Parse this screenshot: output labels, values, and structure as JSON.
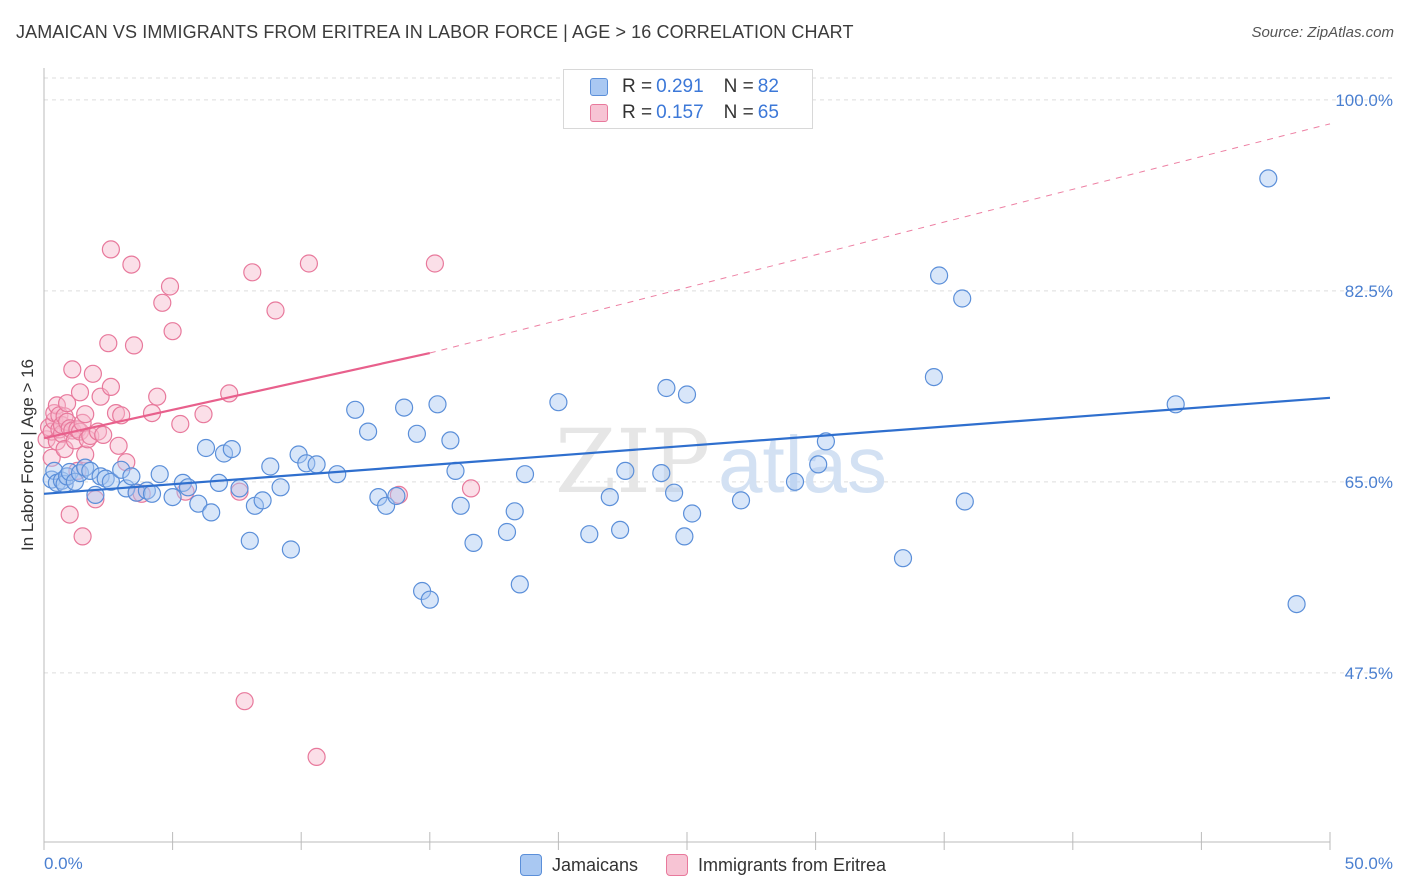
{
  "title": "JAMAICAN VS IMMIGRANTS FROM ERITREA IN LABOR FORCE | AGE > 16 CORRELATION CHART",
  "source": "Source: ZipAtlas.com",
  "watermark": {
    "zip": "ZIP",
    "atlas": "atlas"
  },
  "legend_top": [
    {
      "r_label": "R = ",
      "r_value": "0.291",
      "n_label": "N = ",
      "n_value": "82"
    },
    {
      "r_label": "R = ",
      "r_value": "0.157",
      "n_label": "N = ",
      "n_value": "65"
    }
  ],
  "colors": {
    "blue_fill": "#a9c8f2",
    "blue_stroke": "#5b8fd9",
    "blue_line": "#2f6fce",
    "pink_fill": "#f7b8cc",
    "pink_stroke": "#e8799c",
    "pink_line": "#e8608c",
    "tick_text": "#4a7fd0",
    "grid": "#dddddd"
  },
  "chart_data": {
    "type": "scatter",
    "title": "JAMAICAN VS IMMIGRANTS FROM ERITREA IN LABOR FORCE | AGE > 16 CORRELATION CHART",
    "xlabel": "",
    "ylabel": "In Labor Force | Age > 16",
    "xlim": [
      0,
      50
    ],
    "ylim": [
      32,
      102
    ],
    "x_tick_labels": [
      "0.0%",
      "50.0%"
    ],
    "y_ticks": [
      47.5,
      65.0,
      82.5,
      100.0
    ],
    "y_tick_labels": [
      "47.5%",
      "65.0%",
      "82.5%",
      "100.0%"
    ],
    "grid": true,
    "legend_placement": "bottom-center",
    "series": [
      {
        "name": "Jamaicans",
        "R": 0.291,
        "N": 82,
        "trend": {
          "x": [
            0,
            50
          ],
          "y": [
            63.9,
            72.7
          ],
          "style": "solid"
        },
        "points": [
          [
            0.3,
            65.2
          ],
          [
            0.4,
            66.0
          ],
          [
            0.5,
            64.9
          ],
          [
            0.7,
            65.1
          ],
          [
            0.8,
            64.8
          ],
          [
            0.9,
            65.5
          ],
          [
            1.0,
            65.9
          ],
          [
            1.2,
            65.0
          ],
          [
            1.4,
            65.8
          ],
          [
            1.6,
            66.3
          ],
          [
            1.8,
            66.0
          ],
          [
            2.0,
            63.8
          ],
          [
            2.2,
            65.5
          ],
          [
            2.4,
            65.3
          ],
          [
            2.6,
            65.0
          ],
          [
            3.0,
            66.1
          ],
          [
            3.2,
            64.4
          ],
          [
            3.4,
            65.5
          ],
          [
            3.6,
            64.0
          ],
          [
            4.0,
            64.2
          ],
          [
            4.2,
            63.9
          ],
          [
            4.5,
            65.7
          ],
          [
            5.0,
            63.6
          ],
          [
            5.4,
            64.9
          ],
          [
            5.6,
            64.5
          ],
          [
            6.0,
            63.0
          ],
          [
            6.3,
            68.1
          ],
          [
            6.5,
            62.2
          ],
          [
            6.8,
            64.9
          ],
          [
            7.0,
            67.6
          ],
          [
            7.3,
            68.0
          ],
          [
            7.6,
            64.4
          ],
          [
            8.0,
            59.6
          ],
          [
            8.2,
            62.8
          ],
          [
            8.5,
            63.3
          ],
          [
            8.8,
            66.4
          ],
          [
            9.2,
            64.5
          ],
          [
            9.6,
            58.8
          ],
          [
            9.9,
            67.5
          ],
          [
            10.2,
            66.7
          ],
          [
            10.6,
            66.6
          ],
          [
            11.4,
            65.7
          ],
          [
            12.1,
            71.6
          ],
          [
            12.6,
            69.6
          ],
          [
            13.0,
            63.6
          ],
          [
            13.3,
            62.8
          ],
          [
            13.7,
            63.7
          ],
          [
            14.0,
            71.8
          ],
          [
            14.5,
            69.4
          ],
          [
            14.7,
            55.0
          ],
          [
            15.0,
            54.2
          ],
          [
            15.3,
            72.1
          ],
          [
            15.8,
            68.8
          ],
          [
            16.0,
            66.0
          ],
          [
            16.2,
            62.8
          ],
          [
            16.7,
            59.4
          ],
          [
            18.0,
            60.4
          ],
          [
            18.3,
            62.3
          ],
          [
            18.5,
            55.6
          ],
          [
            18.7,
            65.7
          ],
          [
            20.0,
            72.3
          ],
          [
            21.2,
            60.2
          ],
          [
            22.0,
            63.6
          ],
          [
            22.4,
            60.6
          ],
          [
            22.6,
            66.0
          ],
          [
            24.0,
            65.8
          ],
          [
            24.2,
            73.6
          ],
          [
            24.5,
            64.0
          ],
          [
            24.9,
            60.0
          ],
          [
            25.0,
            73.0
          ],
          [
            25.2,
            62.1
          ],
          [
            27.1,
            63.3
          ],
          [
            29.2,
            65.0
          ],
          [
            30.1,
            66.6
          ],
          [
            30.4,
            68.7
          ],
          [
            33.4,
            58.0
          ],
          [
            34.6,
            74.6
          ],
          [
            34.8,
            83.9
          ],
          [
            35.7,
            81.8
          ],
          [
            35.8,
            63.2
          ],
          [
            44.0,
            72.1
          ],
          [
            47.6,
            92.8
          ],
          [
            48.7,
            53.8
          ]
        ]
      },
      {
        "name": "Immigrants from Eritrea",
        "R": 0.157,
        "N": 65,
        "trend": {
          "x": [
            0,
            15
          ],
          "y": [
            69.0,
            76.8
          ],
          "style": "solid",
          "extended": {
            "x": [
              15,
              50
            ],
            "y": [
              76.8,
              97.8
            ],
            "style": "dashed"
          }
        },
        "points": [
          [
            0.1,
            68.9
          ],
          [
            0.2,
            70.0
          ],
          [
            0.3,
            69.6
          ],
          [
            0.3,
            67.2
          ],
          [
            0.4,
            70.6
          ],
          [
            0.4,
            71.3
          ],
          [
            0.5,
            72.0
          ],
          [
            0.5,
            68.7
          ],
          [
            0.6,
            69.8
          ],
          [
            0.6,
            71.1
          ],
          [
            0.7,
            69.4
          ],
          [
            0.7,
            70.2
          ],
          [
            0.8,
            68.0
          ],
          [
            0.8,
            71.0
          ],
          [
            0.9,
            70.5
          ],
          [
            0.9,
            72.2
          ],
          [
            1.0,
            62.0
          ],
          [
            1.0,
            69.9
          ],
          [
            1.1,
            75.3
          ],
          [
            1.1,
            69.7
          ],
          [
            1.2,
            68.8
          ],
          [
            1.3,
            66.0
          ],
          [
            1.3,
            69.8
          ],
          [
            1.4,
            73.2
          ],
          [
            1.4,
            69.6
          ],
          [
            1.5,
            70.4
          ],
          [
            1.6,
            71.2
          ],
          [
            1.6,
            67.5
          ],
          [
            1.7,
            68.9
          ],
          [
            1.8,
            69.2
          ],
          [
            1.9,
            74.9
          ],
          [
            2.0,
            63.4
          ],
          [
            2.1,
            69.6
          ],
          [
            2.2,
            72.8
          ],
          [
            2.3,
            69.3
          ],
          [
            2.5,
            77.7
          ],
          [
            2.6,
            73.7
          ],
          [
            2.8,
            71.3
          ],
          [
            2.9,
            68.3
          ],
          [
            3.0,
            71.1
          ],
          [
            3.2,
            66.8
          ],
          [
            3.4,
            84.9
          ],
          [
            3.5,
            77.5
          ],
          [
            3.6,
            64.0
          ],
          [
            3.8,
            63.9
          ],
          [
            4.2,
            71.3
          ],
          [
            4.4,
            72.8
          ],
          [
            4.6,
            81.4
          ],
          [
            4.9,
            82.9
          ],
          [
            5.0,
            78.8
          ],
          [
            5.3,
            70.3
          ],
          [
            5.5,
            64.1
          ],
          [
            6.2,
            71.2
          ],
          [
            7.2,
            73.1
          ],
          [
            7.6,
            64.1
          ],
          [
            7.8,
            44.9
          ],
          [
            8.1,
            84.2
          ],
          [
            9.0,
            80.7
          ],
          [
            10.3,
            85.0
          ],
          [
            10.6,
            39.8
          ],
          [
            13.8,
            63.8
          ],
          [
            15.2,
            85.0
          ],
          [
            16.6,
            64.4
          ],
          [
            1.5,
            60.0
          ],
          [
            2.6,
            86.3
          ]
        ]
      }
    ]
  },
  "legend_bottom": [
    {
      "label": "Jamaicans"
    },
    {
      "label": "Immigrants from Eritrea"
    }
  ]
}
